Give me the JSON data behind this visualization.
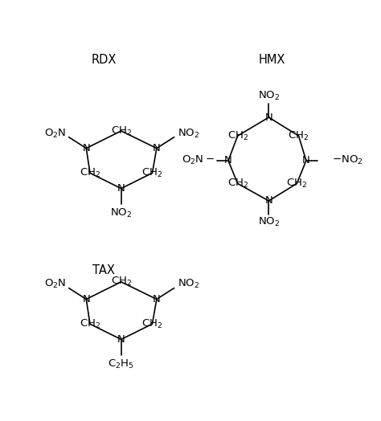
{
  "title_rdx": "RDX",
  "title_hmx": "HMX",
  "title_tax": "TAX",
  "bg_color": "#ffffff",
  "text_color": "#000000",
  "line_color": "#000000",
  "line_width": 1.2,
  "font_size": 9.5
}
